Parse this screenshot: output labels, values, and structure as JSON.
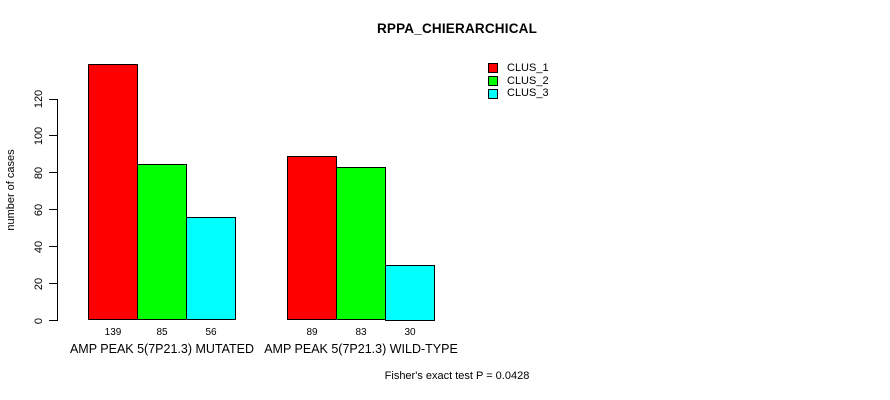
{
  "chart_data": {
    "type": "bar",
    "title": "RPPA_CHIERARCHICAL",
    "xlabel": "",
    "ylabel": "number of cases",
    "ylim": [
      0,
      139
    ],
    "yticks": [
      0,
      20,
      40,
      60,
      80,
      100,
      120
    ],
    "grid": false,
    "legend_position": "top-right-inside",
    "categories": [
      "AMP PEAK 5(7P21.3) MUTATED",
      "AMP PEAK 5(7P21.3) WILD-TYPE"
    ],
    "series": [
      {
        "name": "CLUS_1",
        "color": "#ff0000",
        "values": [
          139,
          89
        ]
      },
      {
        "name": "CLUS_2",
        "color": "#00ff00",
        "values": [
          85,
          83
        ]
      },
      {
        "name": "CLUS_3",
        "color": "#00ffff",
        "values": [
          56,
          30
        ]
      }
    ],
    "bar_value_labels": [
      [
        139,
        85,
        56
      ],
      [
        89,
        83,
        30
      ]
    ],
    "annotation": "Fisher's exact test P = 0.0428"
  }
}
